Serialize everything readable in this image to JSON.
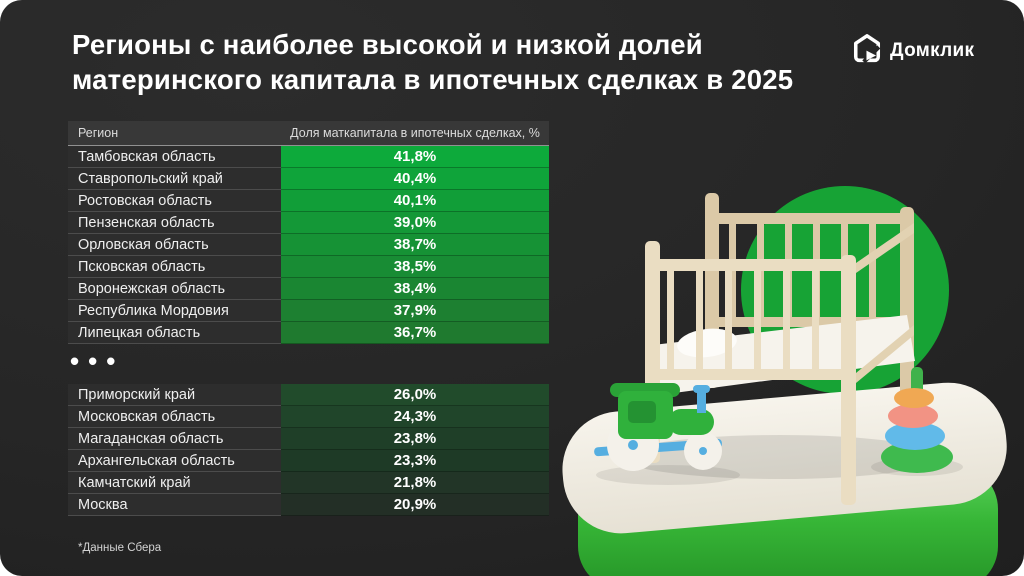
{
  "title": {
    "line1": "Регионы с наиболее высокой и низкой долей",
    "line2": "материнского капитала в ипотечных сделках в 2025"
  },
  "logo": {
    "brand": "Домклик"
  },
  "footnote": "*Данные Сбера",
  "separator": "•••",
  "colors": {
    "accent_green": "#17A335",
    "card_bg": "#262626",
    "top_value_start": "#0DAA3B",
    "top_value_end": "#1F7A2F",
    "bottom_value_start": "#214B2B",
    "bottom_value_end": "#232F26"
  },
  "table": {
    "headers": {
      "region": "Регион",
      "value": "Доля маткапитала в ипотечных сделках, %"
    },
    "top_rows": [
      {
        "region": "Тамбовская область",
        "value": "41,8%",
        "bg": "#0DAA3B"
      },
      {
        "region": "Ставропольский край",
        "value": "40,4%",
        "bg": "#0FA43A"
      },
      {
        "region": "Ростовская область",
        "value": "40,1%",
        "bg": "#119E38"
      },
      {
        "region": "Пензенская область",
        "value": "39,0%",
        "bg": "#149837"
      },
      {
        "region": "Орловская область",
        "value": "38,7%",
        "bg": "#169235"
      },
      {
        "region": "Псковская область",
        "value": "38,5%",
        "bg": "#188C34"
      },
      {
        "region": "Воронежская область",
        "value": "38,4%",
        "bg": "#1A8632"
      },
      {
        "region": "Республика Мордовия",
        "value": "37,9%",
        "bg": "#1D8031"
      },
      {
        "region": "Липецкая область",
        "value": "36,7%",
        "bg": "#1F7A2F"
      }
    ],
    "bottom_rows": [
      {
        "region": "Приморский край",
        "value": "26,0%",
        "bg": "#214B2B"
      },
      {
        "region": "Московская область",
        "value": "24,3%",
        "bg": "#20452A"
      },
      {
        "region": "Магаданская область",
        "value": "23,8%",
        "bg": "#1F3F28"
      },
      {
        "region": "Архангельская область",
        "value": "23,3%",
        "bg": "#1E3A26"
      },
      {
        "region": "Камчатский край",
        "value": "21,8%",
        "bg": "#223527"
      },
      {
        "region": "Москва",
        "value": "20,9%",
        "bg": "#232F26"
      }
    ]
  },
  "chart_data": {
    "type": "table",
    "title": "Регионы с наиболее высокой и низкой долей материнского капитала в ипотечных сделках в 2025",
    "columns": [
      "Регион",
      "Доля маткапитала в ипотечных сделках, %"
    ],
    "top_regions": [
      {
        "region": "Тамбовская область",
        "share_pct": 41.8
      },
      {
        "region": "Ставропольский край",
        "share_pct": 40.4
      },
      {
        "region": "Ростовская область",
        "share_pct": 40.1
      },
      {
        "region": "Пензенская область",
        "share_pct": 39.0
      },
      {
        "region": "Орловская область",
        "share_pct": 38.7
      },
      {
        "region": "Псковская область",
        "share_pct": 38.5
      },
      {
        "region": "Воронежская область",
        "share_pct": 38.4
      },
      {
        "region": "Республика Мордовия",
        "share_pct": 37.9
      },
      {
        "region": "Липецкая область",
        "share_pct": 36.7
      }
    ],
    "bottom_regions": [
      {
        "region": "Приморский край",
        "share_pct": 26.0
      },
      {
        "region": "Московская область",
        "share_pct": 24.3
      },
      {
        "region": "Магаданская область",
        "share_pct": 23.8
      },
      {
        "region": "Архангельская область",
        "share_pct": 23.3
      },
      {
        "region": "Камчатский край",
        "share_pct": 21.8
      },
      {
        "region": "Москва",
        "share_pct": 20.9
      }
    ],
    "source": "Данные Сбера",
    "legend_position": "none",
    "grid": false
  }
}
